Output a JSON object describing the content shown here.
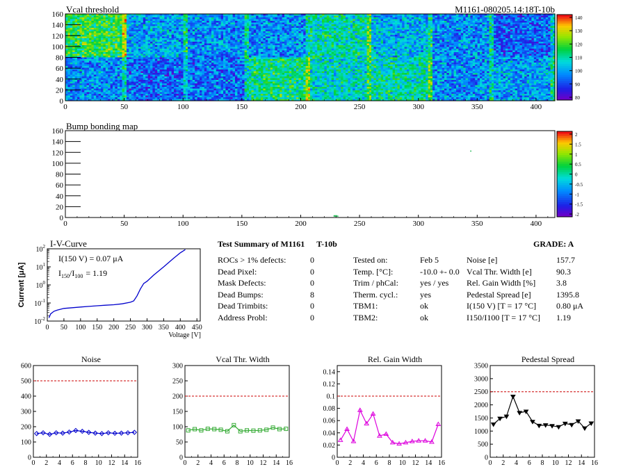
{
  "vcal": {
    "title": "Vcal threshold",
    "tag": "M1161-080205.14:18T-10b",
    "x_ticks": [
      "0",
      "50",
      "100",
      "150",
      "200",
      "250",
      "300",
      "350",
      "400"
    ],
    "y_ticks": [
      "0",
      "20",
      "40",
      "60",
      "80",
      "100",
      "120",
      "140",
      "160"
    ],
    "scale_ticks": [
      "80",
      "90",
      "100",
      "110",
      "120",
      "130",
      "140"
    ]
  },
  "bump": {
    "title": "Bump bonding map",
    "x_ticks": [
      "0",
      "50",
      "100",
      "150",
      "200",
      "250",
      "300",
      "350",
      "400"
    ],
    "y_ticks": [
      "0",
      "20",
      "40",
      "60",
      "80",
      "100",
      "120",
      "140",
      "160"
    ],
    "scale_ticks": [
      "-2",
      "-1.5",
      "-1",
      "-0.5",
      "0",
      "0.5",
      "1",
      "1.5",
      "2"
    ]
  },
  "iv": {
    "title": "I-V-Curve",
    "ylabel": "Current [μA]",
    "xlabel": "Voltage [V]",
    "ann1": "I(150 V) = 0.07 μA",
    "ann2_main": "I",
    "ann2_sub1": "150",
    "ann2_slash": "/I",
    "ann2_sub2": "100",
    "ann2_val": "= 1.19",
    "x_ticks": [
      "0",
      "50",
      "100",
      "150",
      "200",
      "250",
      "300",
      "350",
      "400",
      "450"
    ],
    "y_exp": [
      "-2",
      "-1",
      "0",
      "1",
      "2"
    ]
  },
  "summary": {
    "heading": "Test Summary of M1161",
    "temp_tag": "T-10b",
    "grade": "GRADE:  A",
    "left": [
      {
        "label": "ROCs > 1% defects:",
        "value": "0"
      },
      {
        "label": "Dead Pixel:",
        "value": "0"
      },
      {
        "label": "Mask Defects:",
        "value": "0"
      },
      {
        "label": "Dead Bumps:",
        "value": "8"
      },
      {
        "label": "Dead Trimbits:",
        "value": "0"
      },
      {
        "label": "Address Probl:",
        "value": "0"
      }
    ],
    "mid": [
      {
        "label": "Tested on:",
        "value": "Feb 5"
      },
      {
        "label": "Temp. [°C]:",
        "value": "-10.0 +- 0.0"
      },
      {
        "label": "Trim / phCal:",
        "value": "yes / yes"
      },
      {
        "label": "Therm. cycl.:",
        "value": "yes"
      },
      {
        "label": "TBM1:",
        "value": "ok"
      },
      {
        "label": "TBM2:",
        "value": "ok"
      }
    ],
    "right": [
      {
        "label": "Noise [e]",
        "value": "157.7"
      },
      {
        "label": "Vcal Thr. Width [e]",
        "value": "90.3"
      },
      {
        "label": "Rel. Gain Width [%]",
        "value": "3.8"
      },
      {
        "label": "Pedestal Spread [e]",
        "value": "1395.8"
      },
      {
        "label": "I(150 V) [T = 17 °C]",
        "value": "0.80 μA"
      },
      {
        "label": "I150/I100 [T = 17 °C]",
        "value": "1.19"
      }
    ]
  },
  "chart_data": [
    {
      "type": "heatmap",
      "title": "Vcal threshold",
      "xlim": [
        0,
        416
      ],
      "ylim": [
        0,
        160
      ],
      "zlim": [
        80,
        145
      ],
      "roc_grid": {
        "columns": 8,
        "rows": 2,
        "roc_width": 52,
        "roc_height": 80
      },
      "roc_mean_upper": [
        120,
        102,
        100,
        100,
        112,
        104,
        100,
        95
      ],
      "roc_mean_lower": [
        100,
        95,
        97,
        115,
        110,
        112,
        100,
        102
      ]
    },
    {
      "type": "heatmap",
      "title": "Bump bonding map",
      "xlim": [
        0,
        416
      ],
      "ylim": [
        0,
        160
      ],
      "zlim": [
        -2,
        2
      ],
      "dead_bumps": [
        [
          228,
          2
        ],
        [
          229,
          2
        ],
        [
          230,
          2
        ],
        [
          231,
          2
        ],
        [
          228,
          3
        ],
        [
          229,
          3
        ],
        [
          230,
          3
        ],
        [
          344,
          122
        ]
      ]
    },
    {
      "type": "line",
      "title": "I-V-Curve",
      "xlabel": "Voltage [V]",
      "ylabel": "Current [μA]",
      "log_y": true,
      "xlim": [
        0,
        460
      ],
      "ylim": [
        0.01,
        100
      ],
      "x": [
        5,
        10,
        20,
        30,
        40,
        50,
        75,
        100,
        125,
        150,
        175,
        200,
        225,
        250,
        260,
        270,
        280,
        290,
        300,
        320,
        350,
        380,
        400,
        415
      ],
      "y": [
        0.015,
        0.025,
        0.035,
        0.04,
        0.045,
        0.05,
        0.055,
        0.06,
        0.065,
        0.07,
        0.075,
        0.08,
        0.09,
        0.11,
        0.13,
        0.25,
        0.6,
        1.2,
        1.6,
        3.5,
        10,
        30,
        60,
        90
      ]
    },
    {
      "type": "line",
      "title": "Noise",
      "xlim": [
        0,
        16
      ],
      "ylim": [
        0,
        600
      ],
      "x_ticks": [
        "0",
        "2",
        "4",
        "6",
        "8",
        "10",
        "12",
        "14",
        "16"
      ],
      "y_ticks": [
        "0",
        "100",
        "200",
        "300",
        "400",
        "500",
        "600"
      ],
      "threshold": 500,
      "color": "#0000cc",
      "x": [
        0.5,
        1.5,
        2.5,
        3.5,
        4.5,
        5.5,
        6.5,
        7.5,
        8.5,
        9.5,
        10.5,
        11.5,
        12.5,
        13.5,
        14.5,
        15.5
      ],
      "values": [
        155,
        160,
        150,
        160,
        158,
        165,
        175,
        170,
        163,
        158,
        155,
        160,
        157,
        158,
        160,
        163
      ]
    },
    {
      "type": "line",
      "title": "Vcal Thr. Width",
      "xlim": [
        0,
        16
      ],
      "ylim": [
        0,
        300
      ],
      "x_ticks": [
        "0",
        "2",
        "4",
        "6",
        "8",
        "10",
        "12",
        "14",
        "16"
      ],
      "y_ticks": [
        "0",
        "50",
        "100",
        "150",
        "200",
        "250",
        "300"
      ],
      "threshold": 200,
      "color": "#33aa33",
      "x": [
        0.5,
        1.5,
        2.5,
        3.5,
        4.5,
        5.5,
        6.5,
        7.5,
        8.5,
        9.5,
        10.5,
        11.5,
        12.5,
        13.5,
        14.5,
        15.5
      ],
      "values": [
        88,
        92,
        88,
        93,
        92,
        90,
        85,
        105,
        85,
        88,
        87,
        88,
        90,
        97,
        92,
        93
      ]
    },
    {
      "type": "line",
      "title": "Rel. Gain Width",
      "xlim": [
        0,
        16
      ],
      "ylim": [
        0,
        0.15
      ],
      "x_ticks": [
        "0",
        "2",
        "4",
        "6",
        "8",
        "10",
        "12",
        "14",
        "16"
      ],
      "y_ticks": [
        "0",
        "0.02",
        "0.04",
        "0.06",
        "0.08",
        "0.1",
        "0.12",
        "0.14"
      ],
      "threshold": 0.1,
      "color": "#dd00dd",
      "x": [
        0.5,
        1.5,
        2.5,
        3.5,
        4.5,
        5.5,
        6.5,
        7.5,
        8.5,
        9.5,
        10.5,
        11.5,
        12.5,
        13.5,
        14.5,
        15.5
      ],
      "values": [
        0.028,
        0.046,
        0.026,
        0.077,
        0.055,
        0.071,
        0.035,
        0.038,
        0.024,
        0.022,
        0.024,
        0.026,
        0.027,
        0.027,
        0.025,
        0.054
      ]
    },
    {
      "type": "line",
      "title": "Pedestal Spread",
      "xlim": [
        0,
        16
      ],
      "ylim": [
        0,
        3500
      ],
      "x_ticks": [
        "0",
        "2",
        "4",
        "6",
        "8",
        "10",
        "12",
        "14",
        "16"
      ],
      "y_ticks": [
        "0",
        "500",
        "1000",
        "1500",
        "2000",
        "2500",
        "3000",
        "3500"
      ],
      "threshold": 2500,
      "color": "#000000",
      "x": [
        0.5,
        1.5,
        2.5,
        3.5,
        4.5,
        5.5,
        6.5,
        7.5,
        8.5,
        9.5,
        10.5,
        11.5,
        12.5,
        13.5,
        14.5,
        15.5
      ],
      "values": [
        1260,
        1480,
        1560,
        2320,
        1700,
        1750,
        1360,
        1210,
        1230,
        1200,
        1160,
        1290,
        1240,
        1380,
        1110,
        1300
      ]
    }
  ]
}
